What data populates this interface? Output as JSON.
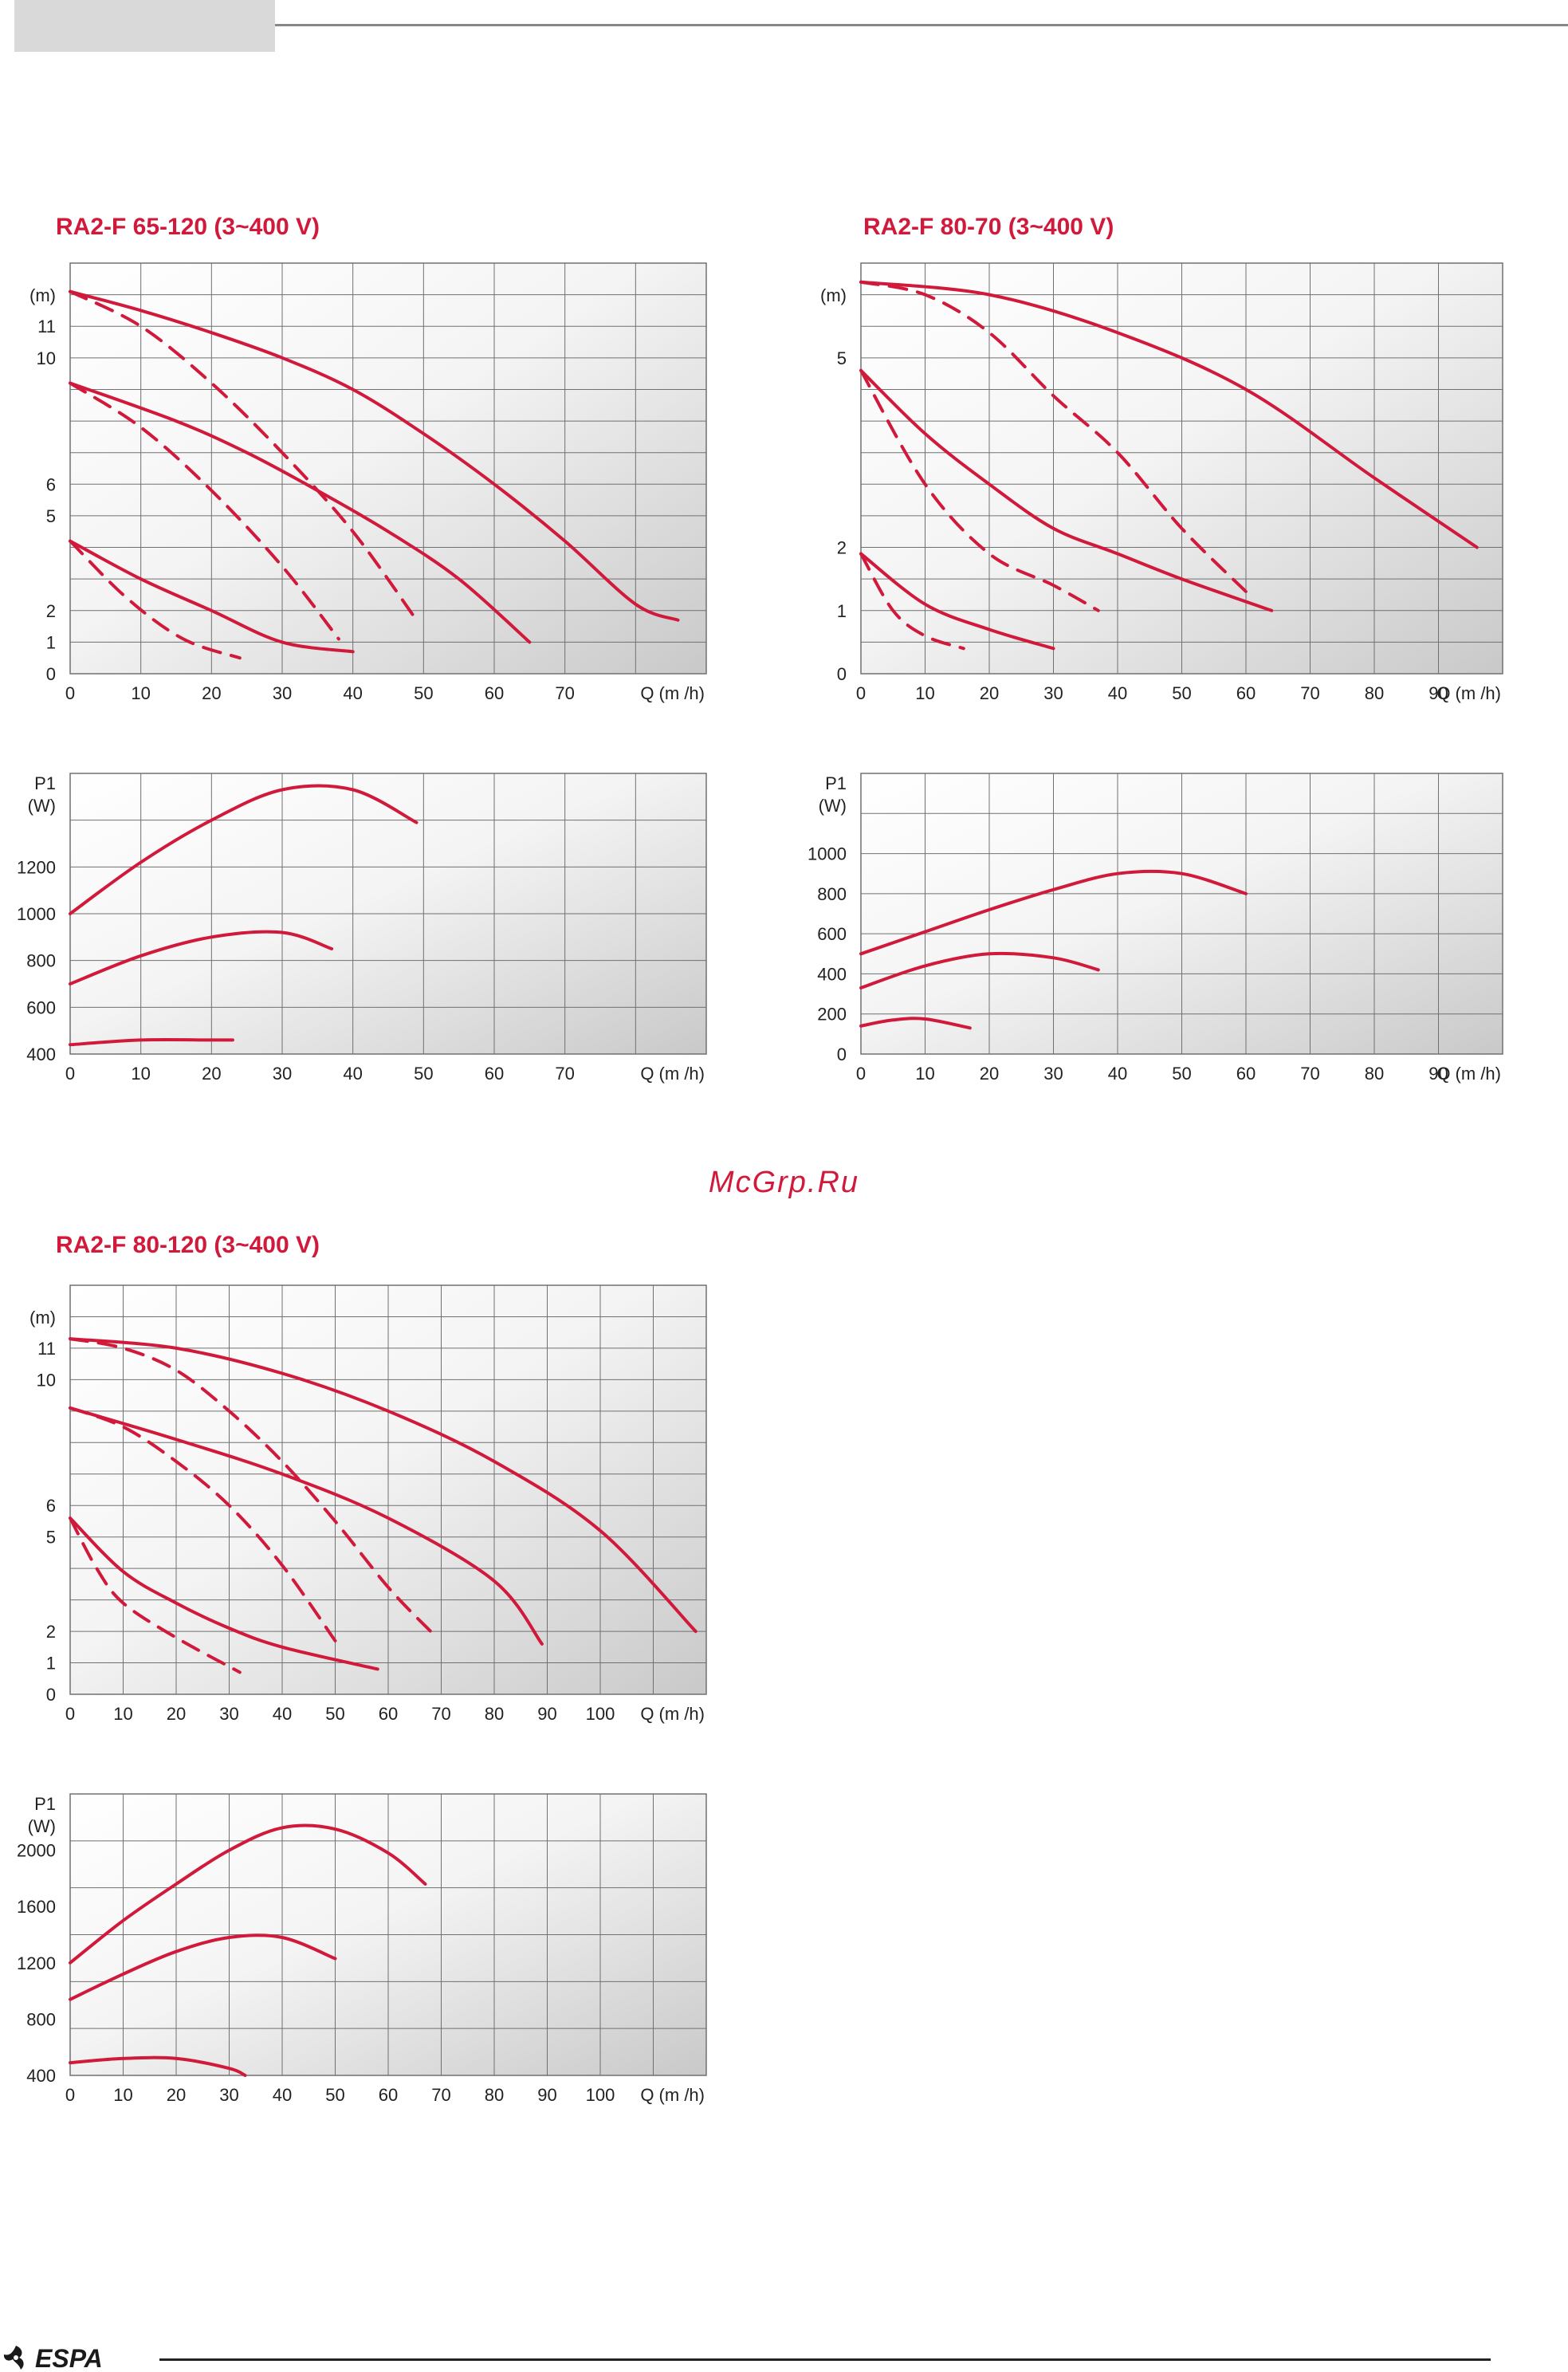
{
  "watermark": "McGrp.Ru",
  "footer": {
    "brand": "ESPA"
  },
  "colors": {
    "curve": "#d11a3b",
    "grid": "#707070",
    "axis_text": "#222222"
  },
  "chart_data": [
    {
      "id": "ra2f-65-120",
      "type": "line",
      "title": "RA2-F 65-120 (3~400 V)",
      "head": {
        "ylabel": "(m)",
        "xlabel": "Q (m /h)",
        "xlim": [
          0,
          90
        ],
        "ylim": [
          0,
          13
        ],
        "xticks": [
          0,
          10,
          20,
          30,
          40,
          50,
          60,
          70
        ],
        "yticks": [
          0,
          1,
          2,
          5,
          6,
          10,
          11
        ],
        "series": [
          {
            "dash": false,
            "points": [
              [
                0,
                12.1
              ],
              [
                10,
                11.5
              ],
              [
                20,
                10.8
              ],
              [
                30,
                10.0
              ],
              [
                40,
                9.0
              ],
              [
                50,
                7.6
              ],
              [
                60,
                6.0
              ],
              [
                70,
                4.2
              ],
              [
                80,
                2.2
              ],
              [
                86,
                1.7
              ]
            ]
          },
          {
            "dash": true,
            "points": [
              [
                0,
                12.1
              ],
              [
                10,
                11.0
              ],
              [
                20,
                9.2
              ],
              [
                30,
                7.0
              ],
              [
                40,
                4.5
              ],
              [
                49,
                1.7
              ]
            ]
          },
          {
            "dash": false,
            "points": [
              [
                0,
                9.2
              ],
              [
                15,
                8.0
              ],
              [
                25,
                7.0
              ],
              [
                35,
                5.8
              ],
              [
                45,
                4.5
              ],
              [
                55,
                3.0
              ],
              [
                65,
                1.0
              ]
            ]
          },
          {
            "dash": true,
            "points": [
              [
                0,
                9.2
              ],
              [
                10,
                7.8
              ],
              [
                20,
                5.8
              ],
              [
                30,
                3.4
              ],
              [
                38,
                1.1
              ]
            ]
          },
          {
            "dash": false,
            "points": [
              [
                0,
                4.2
              ],
              [
                10,
                3.0
              ],
              [
                20,
                2.0
              ],
              [
                30,
                1.0
              ],
              [
                40,
                0.7
              ]
            ]
          },
          {
            "dash": true,
            "points": [
              [
                0,
                4.2
              ],
              [
                8,
                2.4
              ],
              [
                16,
                1.1
              ],
              [
                24,
                0.5
              ]
            ]
          }
        ]
      },
      "power": {
        "ylabel": "P1\n(W)",
        "xlabel": "Q (m /h)",
        "xlim": [
          0,
          90
        ],
        "ylim": [
          400,
          1600
        ],
        "xticks": [
          0,
          10,
          20,
          30,
          40,
          50,
          60,
          70
        ],
        "yticks": [
          400,
          600,
          800,
          1000,
          1200
        ],
        "series": [
          {
            "dash": false,
            "points": [
              [
                0,
                1000
              ],
              [
                10,
                1220
              ],
              [
                20,
                1400
              ],
              [
                30,
                1530
              ],
              [
                40,
                1530
              ],
              [
                49,
                1390
              ]
            ]
          },
          {
            "dash": false,
            "points": [
              [
                0,
                700
              ],
              [
                10,
                820
              ],
              [
                20,
                900
              ],
              [
                30,
                920
              ],
              [
                37,
                850
              ]
            ]
          },
          {
            "dash": false,
            "points": [
              [
                0,
                440
              ],
              [
                10,
                460
              ],
              [
                20,
                460
              ],
              [
                23,
                460
              ]
            ]
          }
        ]
      }
    },
    {
      "id": "ra2f-80-70",
      "type": "line",
      "title": "RA2-F 80-70 (3~400 V)",
      "head": {
        "ylabel": "(m)",
        "xlabel": "Q (m /h)",
        "xlim": [
          0,
          100
        ],
        "ylim": [
          0,
          6.5
        ],
        "xticks": [
          0,
          10,
          20,
          30,
          40,
          50,
          60,
          70,
          80,
          90
        ],
        "yticks": [
          0,
          1,
          2,
          5
        ],
        "series": [
          {
            "dash": false,
            "points": [
              [
                0,
                6.2
              ],
              [
                20,
                6.0
              ],
              [
                40,
                5.4
              ],
              [
                60,
                4.5
              ],
              [
                80,
                3.1
              ],
              [
                96,
                2.0
              ]
            ]
          },
          {
            "dash": true,
            "points": [
              [
                0,
                6.2
              ],
              [
                10,
                6.0
              ],
              [
                20,
                5.4
              ],
              [
                30,
                4.4
              ],
              [
                40,
                3.5
              ],
              [
                50,
                2.3
              ],
              [
                60,
                1.3
              ]
            ]
          },
          {
            "dash": false,
            "points": [
              [
                0,
                4.8
              ],
              [
                10,
                3.8
              ],
              [
                20,
                3.0
              ],
              [
                30,
                2.3
              ],
              [
                40,
                1.9
              ],
              [
                50,
                1.5
              ],
              [
                64,
                1.0
              ]
            ]
          },
          {
            "dash": true,
            "points": [
              [
                0,
                4.8
              ],
              [
                10,
                3.0
              ],
              [
                20,
                1.9
              ],
              [
                30,
                1.4
              ],
              [
                37,
                1.0
              ]
            ]
          },
          {
            "dash": false,
            "points": [
              [
                0,
                1.9
              ],
              [
                10,
                1.1
              ],
              [
                20,
                0.7
              ],
              [
                30,
                0.4
              ]
            ]
          },
          {
            "dash": true,
            "points": [
              [
                0,
                1.9
              ],
              [
                5,
                1.0
              ],
              [
                10,
                0.6
              ],
              [
                16,
                0.4
              ]
            ]
          }
        ]
      },
      "power": {
        "ylabel": "P1\n(W)",
        "xlabel": "Q (m /h)",
        "xlim": [
          0,
          100
        ],
        "ylim": [
          0,
          1400
        ],
        "xticks": [
          0,
          10,
          20,
          30,
          40,
          50,
          60,
          70,
          80,
          90
        ],
        "yticks": [
          0,
          200,
          400,
          600,
          800,
          1000
        ],
        "series": [
          {
            "dash": false,
            "points": [
              [
                0,
                500
              ],
              [
                10,
                610
              ],
              [
                20,
                720
              ],
              [
                30,
                820
              ],
              [
                40,
                900
              ],
              [
                50,
                900
              ],
              [
                60,
                800
              ]
            ]
          },
          {
            "dash": false,
            "points": [
              [
                0,
                330
              ],
              [
                10,
                440
              ],
              [
                20,
                500
              ],
              [
                30,
                480
              ],
              [
                37,
                420
              ]
            ]
          },
          {
            "dash": false,
            "points": [
              [
                0,
                140
              ],
              [
                5,
                170
              ],
              [
                10,
                175
              ],
              [
                17,
                130
              ]
            ]
          }
        ]
      }
    },
    {
      "id": "ra2f-80-120",
      "type": "line",
      "title": "RA2-F 80-120 (3~400 V)",
      "head": {
        "ylabel": "(m)",
        "xlabel": "Q (m /h)",
        "xlim": [
          0,
          120
        ],
        "ylim": [
          0,
          13
        ],
        "xticks": [
          0,
          10,
          20,
          30,
          40,
          50,
          60,
          70,
          80,
          90,
          100
        ],
        "yticks": [
          0,
          1,
          2,
          5,
          6,
          10,
          11
        ],
        "series": [
          {
            "dash": false,
            "points": [
              [
                0,
                11.3
              ],
              [
                20,
                11.0
              ],
              [
                40,
                10.2
              ],
              [
                60,
                9.0
              ],
              [
                80,
                7.4
              ],
              [
                100,
                5.2
              ],
              [
                118,
                2.0
              ]
            ]
          },
          {
            "dash": true,
            "points": [
              [
                0,
                11.3
              ],
              [
                10,
                11.0
              ],
              [
                20,
                10.3
              ],
              [
                30,
                9.0
              ],
              [
                40,
                7.4
              ],
              [
                50,
                5.5
              ],
              [
                60,
                3.4
              ],
              [
                68,
                2.0
              ]
            ]
          },
          {
            "dash": false,
            "points": [
              [
                0,
                9.1
              ],
              [
                20,
                8.1
              ],
              [
                40,
                7.0
              ],
              [
                60,
                5.6
              ],
              [
                80,
                3.6
              ],
              [
                89,
                1.6
              ]
            ]
          },
          {
            "dash": true,
            "points": [
              [
                0,
                9.1
              ],
              [
                10,
                8.5
              ],
              [
                20,
                7.4
              ],
              [
                30,
                6.0
              ],
              [
                40,
                4.1
              ],
              [
                50,
                1.7
              ]
            ]
          },
          {
            "dash": false,
            "points": [
              [
                0,
                5.6
              ],
              [
                10,
                3.9
              ],
              [
                20,
                2.9
              ],
              [
                30,
                2.1
              ],
              [
                40,
                1.5
              ],
              [
                58,
                0.8
              ]
            ]
          },
          {
            "dash": true,
            "points": [
              [
                0,
                5.6
              ],
              [
                5,
                4.0
              ],
              [
                10,
                2.9
              ],
              [
                20,
                1.8
              ],
              [
                32,
                0.7
              ]
            ]
          }
        ]
      },
      "power": {
        "ylabel": "P1\n(W)",
        "xlabel": "Q (m /h)",
        "xlim": [
          0,
          120
        ],
        "ylim": [
          400,
          2400
        ],
        "xticks": [
          0,
          10,
          20,
          30,
          40,
          50,
          60,
          70,
          80,
          90,
          100
        ],
        "yticks": [
          400,
          800,
          1200,
          1600,
          2000
        ],
        "series": [
          {
            "dash": false,
            "points": [
              [
                0,
                1200
              ],
              [
                10,
                1500
              ],
              [
                20,
                1760
              ],
              [
                30,
                2000
              ],
              [
                40,
                2160
              ],
              [
                50,
                2150
              ],
              [
                60,
                1980
              ],
              [
                67,
                1760
              ]
            ]
          },
          {
            "dash": false,
            "points": [
              [
                0,
                940
              ],
              [
                10,
                1120
              ],
              [
                20,
                1280
              ],
              [
                30,
                1380
              ],
              [
                40,
                1380
              ],
              [
                50,
                1230
              ]
            ]
          },
          {
            "dash": false,
            "points": [
              [
                0,
                490
              ],
              [
                10,
                520
              ],
              [
                20,
                520
              ],
              [
                30,
                450
              ],
              [
                33,
                400
              ]
            ]
          }
        ]
      }
    }
  ]
}
